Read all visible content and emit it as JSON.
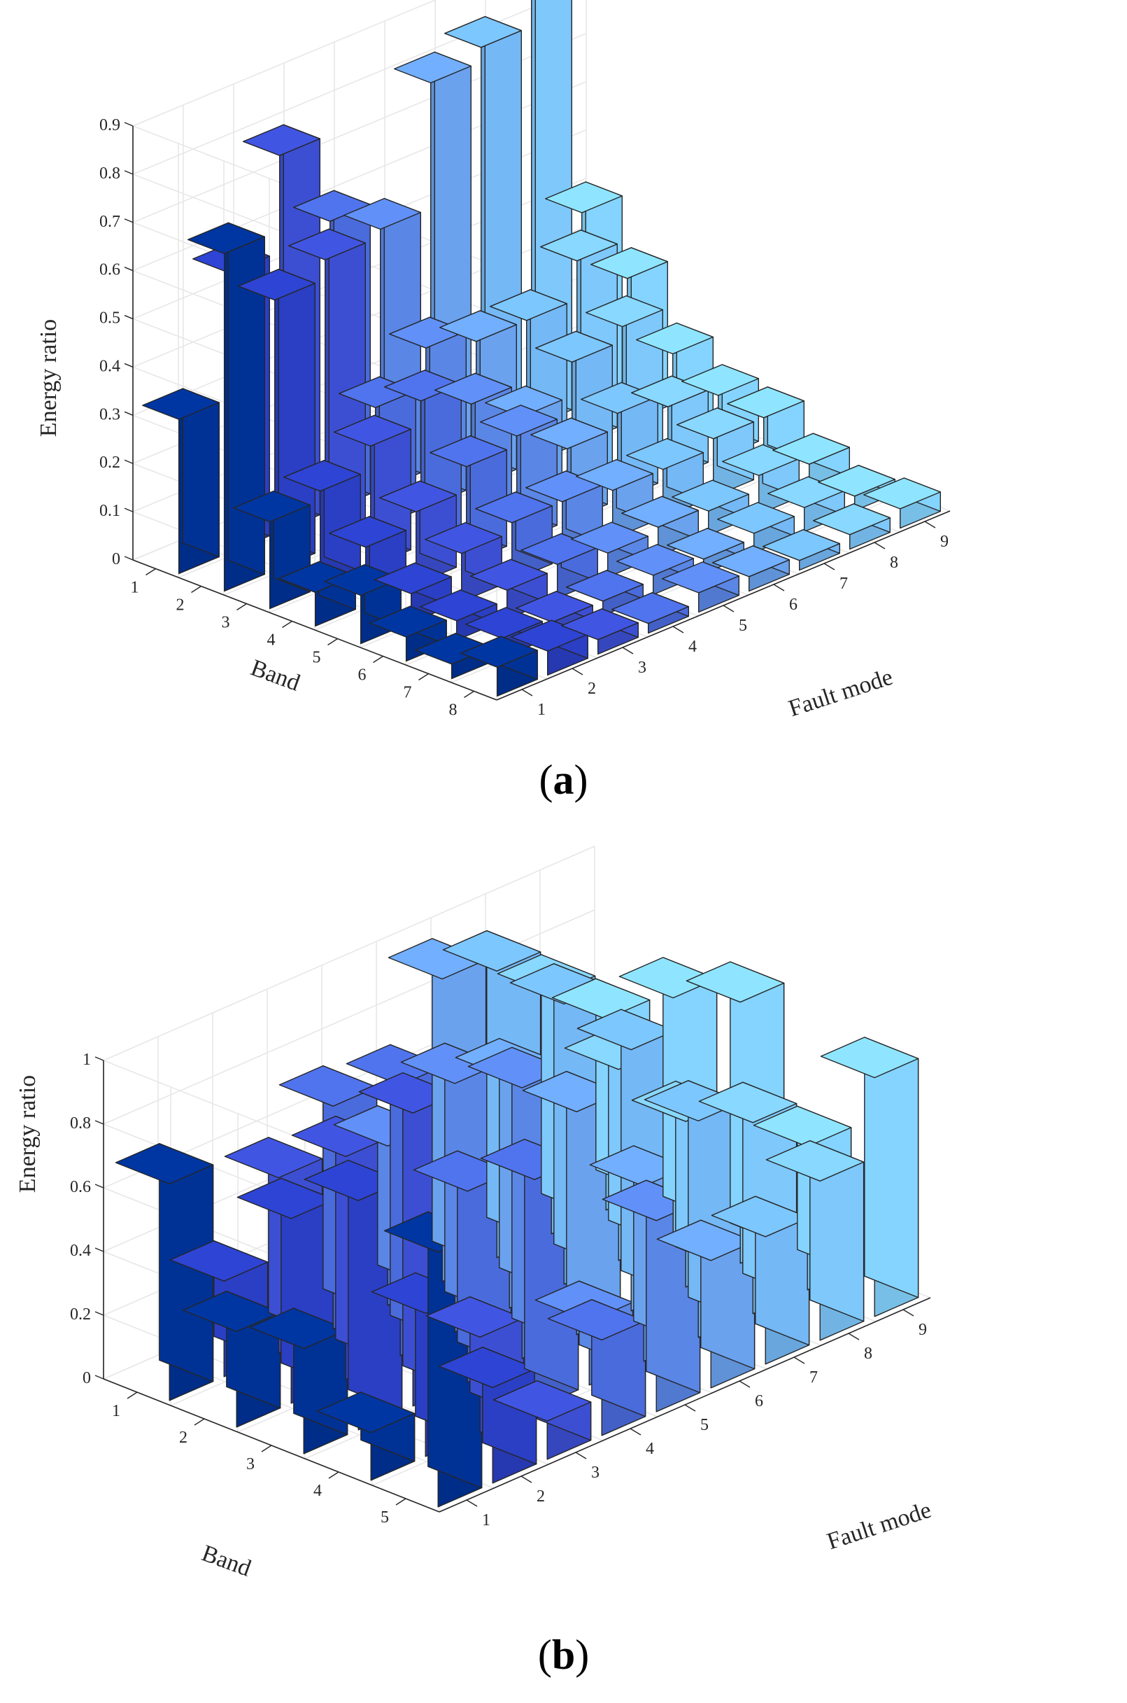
{
  "colors": {
    "pane_grid": "#e6e6e6",
    "axis": "#262626",
    "edge": "#262626",
    "series_colors": [
      "#003296",
      "#2a3fc4",
      "#3c4fd2",
      "#4a6bdc",
      "#5a86e6",
      "#6aa2ee",
      "#74b8f6",
      "#7ec8fc",
      "#84d4ff"
    ]
  },
  "charts": [
    {
      "id": "a",
      "caption_label": "a",
      "chart_data": {
        "type": "bar3d",
        "xlabel": "Band",
        "ylabel": "Fault mode",
        "zlabel": "Energy ratio",
        "zlim": [
          0,
          0.9
        ],
        "z_ticks": [
          0,
          0.1,
          0.2,
          0.3,
          0.4,
          0.5,
          0.6,
          0.7,
          0.8,
          0.9
        ],
        "band_ticks": [
          "1",
          "2",
          "3",
          "4",
          "5",
          "6",
          "7",
          "8"
        ],
        "fault_ticks": [
          "1",
          "2",
          "3",
          "4",
          "5",
          "6",
          "7",
          "8",
          "9"
        ],
        "values": [
          [
            0.32,
            0.58,
            0.78,
            0.6,
            0.54,
            0.8,
            0.83,
            0.9,
            0.4
          ],
          [
            0.7,
            0.56,
            0.6,
            0.25,
            0.33,
            0.3,
            0.3,
            0.38,
            0.3
          ],
          [
            0.18,
            0.2,
            0.25,
            0.3,
            0.25,
            0.18,
            0.25,
            0.28,
            0.18
          ],
          [
            0.07,
            0.12,
            0.15,
            0.2,
            0.22,
            0.15,
            0.18,
            0.15,
            0.13
          ],
          [
            0.1,
            0.06,
            0.1,
            0.12,
            0.12,
            0.1,
            0.1,
            0.12,
            0.12
          ],
          [
            0.05,
            0.04,
            0.06,
            0.07,
            0.05,
            0.06,
            0.05,
            0.08,
            0.06
          ],
          [
            0.03,
            0.04,
            0.03,
            0.03,
            0.04,
            0.03,
            0.04,
            0.05,
            0.03
          ],
          [
            0.06,
            0.05,
            0.03,
            0.02,
            0.04,
            0.03,
            0.02,
            0.03,
            0.04
          ]
        ]
      }
    },
    {
      "id": "b",
      "caption_label": "b",
      "chart_data": {
        "type": "bar3d",
        "xlabel": "Band",
        "ylabel": "Fault mode",
        "zlabel": "Energy ratio",
        "zlim": [
          0,
          1
        ],
        "z_ticks": [
          0,
          0.2,
          0.4,
          0.6,
          0.8,
          1
        ],
        "z_tick_labels": [
          "0",
          "0.2",
          "0.4",
          "0.6",
          "0.8",
          "1"
        ],
        "band_ticks": [
          "1",
          "2",
          "3",
          "4",
          "5"
        ],
        "fault_ticks": [
          "1",
          "2",
          "3",
          "4",
          "5",
          "6",
          "7",
          "8",
          "9"
        ],
        "values": [
          [
            0.68,
            0.3,
            0.55,
            0.7,
            0.5,
            0.95,
            0.9,
            0.75,
            0.6
          ],
          [
            0.3,
            0.58,
            0.7,
            0.85,
            0.78,
            0.72,
            0.88,
            0.6,
            0.75
          ],
          [
            0.33,
            0.72,
            0.92,
            0.6,
            0.85,
            0.7,
            0.82,
            0.52,
            0.82
          ],
          [
            0.15,
            0.45,
            0.3,
            0.72,
            0.2,
            0.55,
            0.68,
            0.6,
            0.45
          ],
          [
            0.8,
            0.3,
            0.12,
            0.3,
            0.6,
            0.4,
            0.4,
            0.5,
            0.75
          ]
        ]
      }
    }
  ]
}
